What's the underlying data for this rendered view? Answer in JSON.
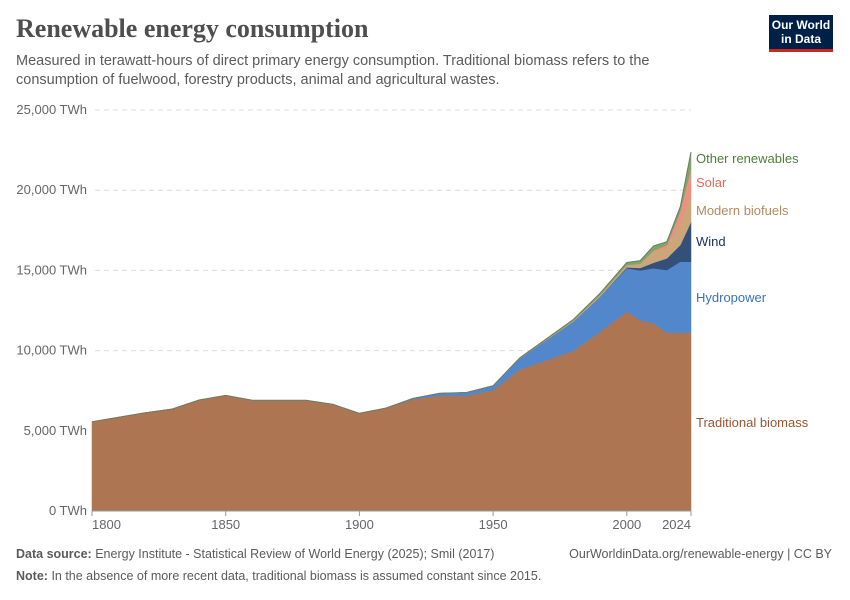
{
  "header": {
    "title": "Renewable energy consumption",
    "subtitle": "Measured in terawatt-hours of direct primary energy consumption. Traditional biomass refers to the consumption of fuelwood, forestry products, animal and agricultural wastes.",
    "logo_text": "Our World in Data"
  },
  "chart_data": {
    "type": "area",
    "stacked": true,
    "title": "Renewable energy consumption",
    "xlabel": "",
    "ylabel": "",
    "ylim": [
      0,
      25000
    ],
    "xlim": [
      1800,
      2024
    ],
    "y_ticks": [
      0,
      5000,
      10000,
      15000,
      20000,
      25000
    ],
    "y_tick_labels": [
      "0 TWh",
      "5,000 TWh",
      "10,000 TWh",
      "15,000 TWh",
      "20,000 TWh",
      "25,000 TWh"
    ],
    "x_ticks": [
      1800,
      1850,
      1900,
      1950,
      2000,
      2024
    ],
    "x_tick_labels": [
      "1800",
      "1850",
      "1900",
      "1950",
      "2000",
      "2024"
    ],
    "grid": "horizontal dashed",
    "legend": "right, inline labels",
    "x": [
      1800,
      1810,
      1820,
      1830,
      1840,
      1850,
      1860,
      1870,
      1880,
      1890,
      1900,
      1910,
      1920,
      1930,
      1940,
      1950,
      1960,
      1970,
      1980,
      1990,
      2000,
      2005,
      2010,
      2015,
      2020,
      2024
    ],
    "series": [
      {
        "name": "Traditional biomass",
        "color": "#ad7552",
        "label_color": "#9a5530",
        "values": [
          5560,
          5850,
          6130,
          6360,
          6920,
          7210,
          6900,
          6900,
          6900,
          6650,
          6090,
          6400,
          6960,
          7190,
          7190,
          7540,
          8830,
          9410,
          9990,
          11180,
          12430,
          11900,
          11700,
          11120,
          11120,
          11120
        ]
      },
      {
        "name": "Hydropower",
        "color": "#5288cb",
        "label_color": "#3a72c0",
        "values": [
          0,
          0,
          0,
          0,
          0,
          0,
          0,
          0,
          0,
          0,
          0,
          20,
          60,
          150,
          200,
          270,
          690,
          1250,
          1810,
          2180,
          2700,
          3100,
          3430,
          3900,
          4420,
          4420
        ]
      },
      {
        "name": "Wind",
        "color": "#33507a",
        "label_color": "#1a3560",
        "values": [
          0,
          0,
          0,
          0,
          0,
          0,
          0,
          0,
          0,
          0,
          0,
          0,
          0,
          0,
          0,
          0,
          0,
          0,
          0,
          0,
          60,
          150,
          350,
          730,
          1040,
          2480
        ]
      },
      {
        "name": "Modern biofuels",
        "color": "#caa679",
        "label_color": "#b48a5c",
        "values": [
          0,
          0,
          0,
          0,
          0,
          0,
          0,
          0,
          0,
          0,
          0,
          0,
          0,
          0,
          0,
          0,
          20,
          40,
          60,
          100,
          150,
          250,
          700,
          630,
          1370,
          1620
        ]
      },
      {
        "name": "Solar",
        "color": "#ec9182",
        "label_color": "#e06b58",
        "values": [
          0,
          0,
          0,
          0,
          0,
          0,
          0,
          0,
          0,
          0,
          0,
          0,
          0,
          0,
          0,
          0,
          0,
          0,
          0,
          0,
          5,
          10,
          50,
          200,
          710,
          1740
        ]
      },
      {
        "name": "Other renewables",
        "color": "#7ea56a",
        "label_color": "#4f8038",
        "values": [
          0,
          0,
          0,
          0,
          0,
          0,
          0,
          0,
          0,
          0,
          0,
          0,
          0,
          0,
          0,
          0,
          20,
          40,
          80,
          120,
          150,
          200,
          300,
          210,
          310,
          1000
        ]
      }
    ]
  },
  "footer": {
    "source_label": "Data source:",
    "source_text": "Energy Institute - Statistical Review of World Energy (2025); Smil (2017)",
    "url_license": "OurWorldinData.org/renewable-energy | CC BY",
    "note_label": "Note:",
    "note_text": "In the absence of more recent data, traditional biomass is assumed constant since 2015."
  }
}
